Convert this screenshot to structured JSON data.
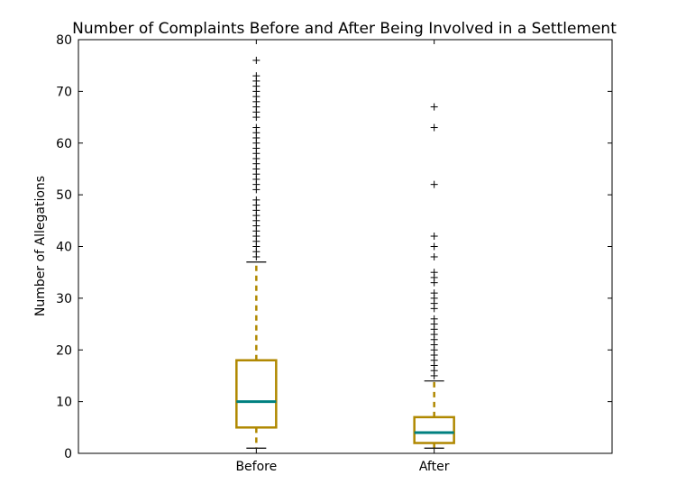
{
  "chart_data": {
    "type": "box",
    "title": "Number of Complaints Before and After Being Involved in a Settlement",
    "xlabel": "",
    "ylabel": "Number of Allegations",
    "ylim": [
      0,
      80
    ],
    "yticks": [
      0,
      10,
      20,
      30,
      40,
      50,
      60,
      70,
      80
    ],
    "ytick_labels": [
      "0",
      "10",
      "20",
      "30",
      "40",
      "50",
      "60",
      "70",
      "80"
    ],
    "grid": false,
    "categories": [
      "Before",
      "After"
    ],
    "boxes": [
      {
        "name": "Before",
        "whisker_low": 1,
        "q1": 5,
        "median": 10,
        "q3": 18,
        "whisker_high": 37,
        "outliers": [
          38,
          39,
          40,
          41,
          42,
          43,
          44,
          45,
          46,
          47,
          48,
          49,
          51,
          52,
          53,
          54,
          55,
          56,
          57,
          58,
          59,
          60,
          61,
          62,
          63,
          65,
          66,
          67,
          68,
          69,
          70,
          71,
          72,
          73,
          76
        ]
      },
      {
        "name": "After",
        "whisker_low": 1,
        "q1": 2,
        "median": 4,
        "q3": 7,
        "whisker_high": 14,
        "outliers": [
          15,
          16,
          17,
          18,
          19,
          20,
          21,
          22,
          23,
          24,
          25,
          26,
          28,
          29,
          30,
          31,
          33,
          34,
          35,
          38,
          40,
          42,
          52,
          63,
          67
        ]
      }
    ],
    "colors": {
      "box": "#b08800",
      "median": "#008080",
      "whisker": "#b08800",
      "cap": "#000000",
      "flier": "#000000"
    }
  }
}
